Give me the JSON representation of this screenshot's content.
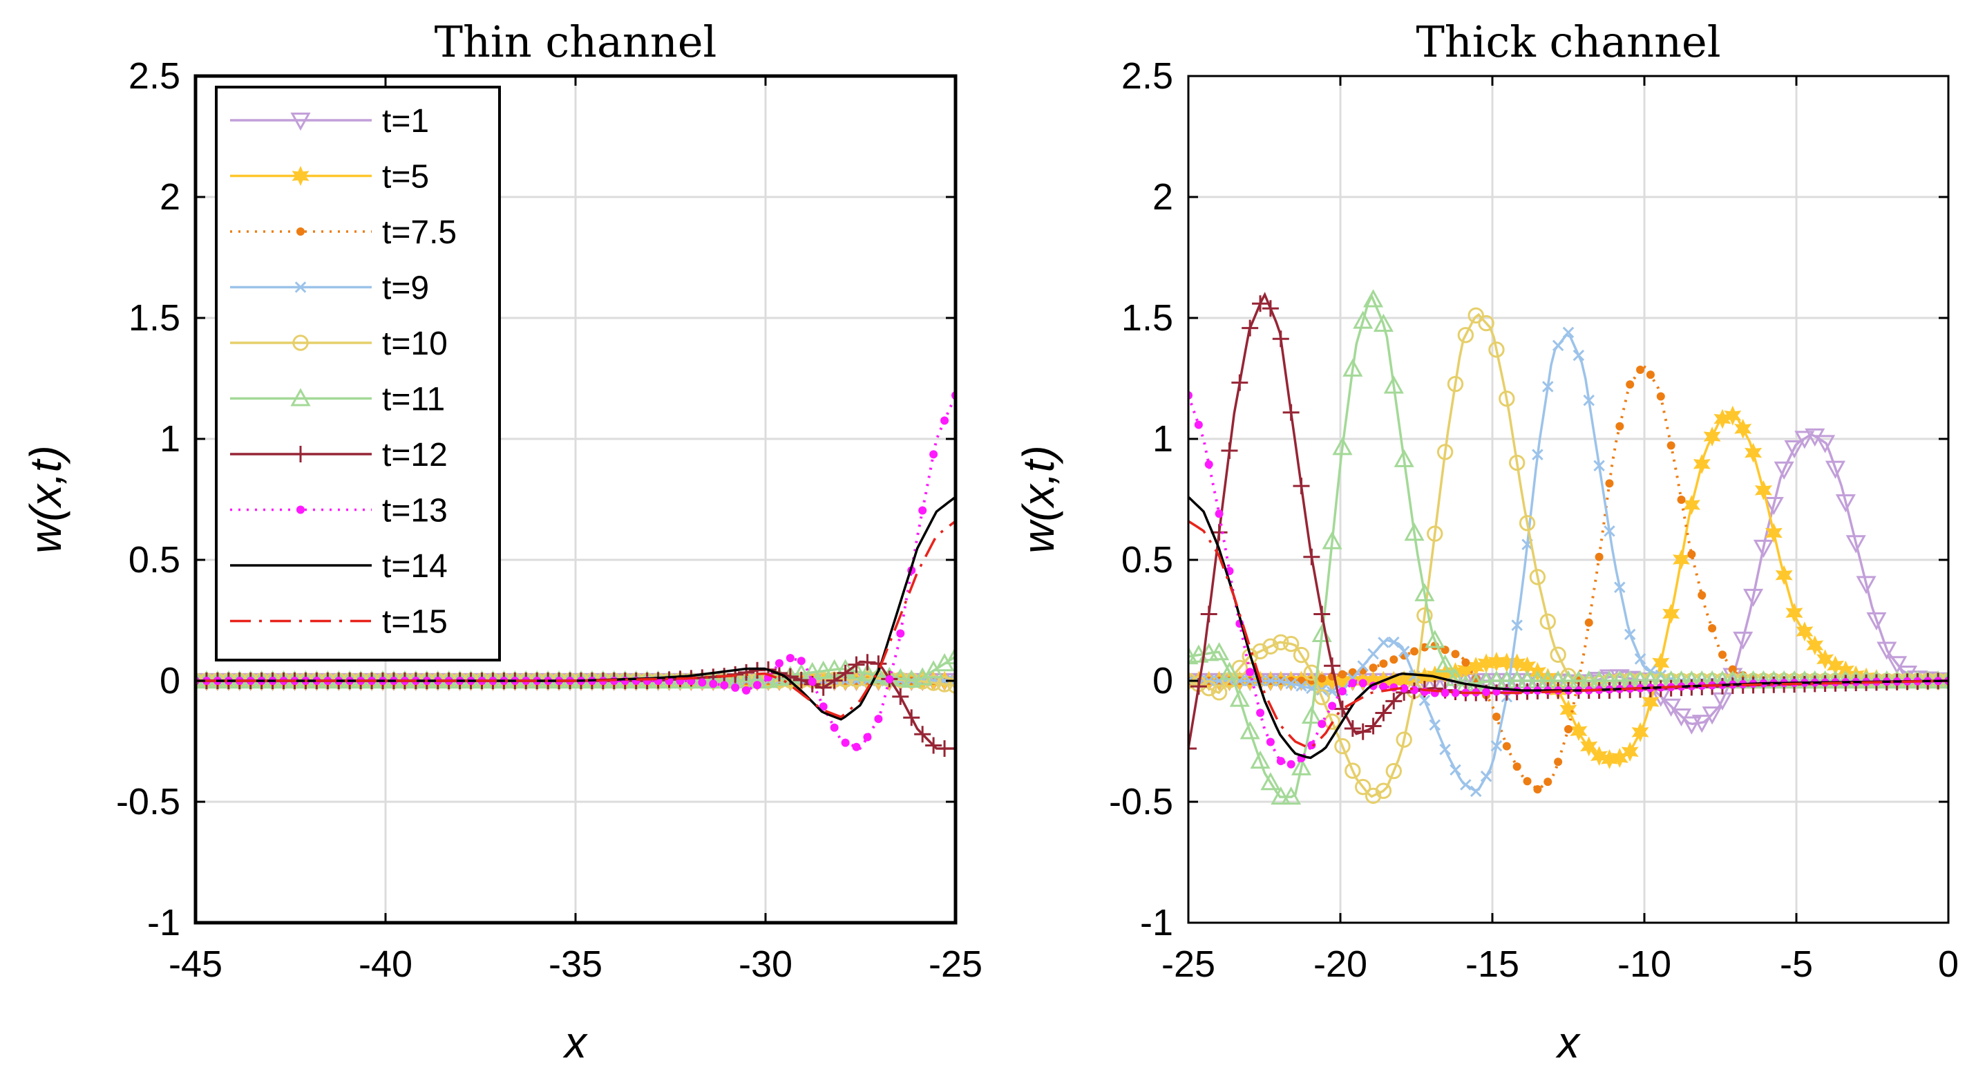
{
  "chart_data": [
    {
      "type": "line",
      "title": "Thin channel",
      "xlabel": "x",
      "ylabel": "w(x,t)",
      "xlim": [
        -45,
        -25
      ],
      "ylim": [
        -1,
        2.5
      ],
      "xticks": [
        -45,
        -40,
        -35,
        -30,
        -25
      ],
      "yticks": [
        -1,
        -0.5,
        0,
        0.5,
        1,
        1.5,
        2,
        2.5
      ],
      "xtick_labels": [
        "-45",
        "-40",
        "-35",
        "-30",
        "-25"
      ],
      "ytick_labels": [
        "-1",
        "-0.5",
        "0",
        "0.5",
        "1",
        "1.5",
        "2",
        "2.5"
      ],
      "grid": true,
      "legend": "top-left",
      "series": [
        {
          "name": "t=1",
          "color": "#c29fd9",
          "marker": "triangle-down",
          "dash": "solid",
          "x": [
            -45,
            -35,
            -30,
            -25
          ],
          "y": [
            0,
            0,
            0,
            0
          ]
        },
        {
          "name": "t=5",
          "color": "#ffc72c",
          "marker": "star",
          "dash": "solid",
          "x": [
            -45,
            -35,
            -30,
            -25
          ],
          "y": [
            0,
            0,
            0,
            0
          ]
        },
        {
          "name": "t=7.5",
          "color": "#ed7d12",
          "marker": "dot",
          "dash": "dotted",
          "x": [
            -45,
            -35,
            -30,
            -25
          ],
          "y": [
            0,
            0,
            0,
            0
          ]
        },
        {
          "name": "t=9",
          "color": "#9cc3ea",
          "marker": "x",
          "dash": "solid",
          "x": [
            -45,
            -35,
            -30,
            -25
          ],
          "y": [
            0,
            0,
            0,
            0
          ]
        },
        {
          "name": "t=10",
          "color": "#e6cf6a",
          "marker": "circle",
          "dash": "solid",
          "x": [
            -45,
            -30,
            -28,
            -27,
            -26,
            -25
          ],
          "y": [
            0,
            0,
            0.005,
            0.01,
            0.0,
            -0.02
          ]
        },
        {
          "name": "t=11",
          "color": "#a3d997",
          "marker": "triangle-up",
          "dash": "solid",
          "x": [
            -45,
            -30,
            -29,
            -28,
            -27,
            -26,
            -25.5,
            -25
          ],
          "y": [
            0,
            0,
            0.03,
            0.05,
            0.02,
            0.0,
            0.05,
            0.1
          ]
        },
        {
          "name": "t=12",
          "color": "#962535",
          "marker": "plus",
          "dash": "solid",
          "x": [
            -45,
            -33,
            -31,
            -30,
            -29,
            -28.5,
            -28,
            -27.5,
            -27,
            -26.5,
            -26,
            -25.5,
            -25
          ],
          "y": [
            0,
            0,
            0.02,
            0.05,
            0.0,
            -0.03,
            0.02,
            0.08,
            0.07,
            -0.05,
            -0.2,
            -0.28,
            -0.28
          ]
        },
        {
          "name": "t=13",
          "color": "#ff19ff",
          "marker": "dot",
          "dash": "dotted",
          "x": [
            -45,
            -32,
            -31,
            -30.5,
            -30,
            -29.5,
            -29,
            -28.5,
            -28,
            -27.5,
            -27,
            -26.5,
            -26,
            -25.5,
            -25
          ],
          "y": [
            0,
            0,
            -0.02,
            -0.04,
            0.0,
            0.1,
            0.08,
            -0.1,
            -0.25,
            -0.28,
            -0.15,
            0.15,
            0.6,
            1.0,
            1.18
          ]
        },
        {
          "name": "t=14",
          "color": "#000000",
          "marker": "none",
          "dash": "solid",
          "x": [
            -45,
            -35,
            -33,
            -32,
            -31,
            -30.5,
            -30,
            -29.5,
            -29,
            -28.5,
            -28,
            -27.5,
            -27,
            -26.5,
            -26,
            -25.5,
            -25
          ],
          "y": [
            0,
            0,
            0.01,
            0.02,
            0.04,
            0.05,
            0.05,
            0.02,
            -0.05,
            -0.13,
            -0.16,
            -0.1,
            0.05,
            0.3,
            0.55,
            0.7,
            0.76
          ]
        },
        {
          "name": "t=15",
          "color": "#e8231b",
          "marker": "none",
          "dash": "dashdot",
          "x": [
            -45,
            -35,
            -32,
            -31,
            -30,
            -29.5,
            -29,
            -28.5,
            -28,
            -27.5,
            -27,
            -26.5,
            -26,
            -25.5,
            -25
          ],
          "y": [
            0,
            0,
            0.01,
            0.02,
            0.03,
            0.0,
            -0.06,
            -0.12,
            -0.15,
            -0.08,
            0.05,
            0.25,
            0.45,
            0.6,
            0.66
          ]
        }
      ]
    },
    {
      "type": "line",
      "title": "Thick channel",
      "xlabel": "x",
      "ylabel": "w(x,t)",
      "xlim": [
        -25,
        0
      ],
      "ylim": [
        -1,
        2.5
      ],
      "xticks": [
        -25,
        -20,
        -15,
        -10,
        -5,
        0
      ],
      "yticks": [
        -1,
        -0.5,
        0,
        0.5,
        1,
        1.5,
        2,
        2.5
      ],
      "xtick_labels": [
        "-25",
        "-20",
        "-15",
        "-10",
        "-5",
        "0"
      ],
      "ytick_labels": [
        "-1",
        "-0.5",
        "0",
        "0.5",
        "1",
        "1.5",
        "2",
        "2.5"
      ],
      "grid": true,
      "series": [
        {
          "name": "t=1",
          "color": "#c29fd9",
          "marker": "triangle-down",
          "dash": "solid",
          "x": [
            -25,
            -13,
            -12,
            -11,
            -10,
            -9,
            -8.5,
            -8,
            -7.5,
            -7,
            -6.5,
            -6,
            -5.5,
            -5,
            -4.5,
            -4,
            -3.5,
            -3,
            -2.5,
            -2,
            -1.5,
            -1,
            0
          ],
          "y": [
            0,
            0,
            -0.01,
            0.02,
            0.0,
            -0.12,
            -0.18,
            -0.17,
            -0.1,
            0.05,
            0.3,
            0.6,
            0.85,
            0.98,
            1.02,
            0.98,
            0.8,
            0.55,
            0.3,
            0.12,
            0.04,
            0.01,
            0
          ]
        },
        {
          "name": "t=5",
          "color": "#ffc72c",
          "marker": "star",
          "dash": "solid",
          "x": [
            -25,
            -18,
            -16,
            -15,
            -14,
            -13,
            -12.5,
            -12,
            -11.5,
            -11,
            -10.5,
            -10,
            -9.5,
            -9,
            -8.5,
            -8,
            -7.5,
            -7,
            -6.5,
            -6,
            -5.5,
            -5,
            -4,
            -3,
            -2,
            0
          ],
          "y": [
            0,
            0,
            0.04,
            0.08,
            0.07,
            0.0,
            -0.12,
            -0.25,
            -0.31,
            -0.33,
            -0.3,
            -0.18,
            0.05,
            0.35,
            0.7,
            0.95,
            1.08,
            1.1,
            0.98,
            0.75,
            0.48,
            0.25,
            0.08,
            0.02,
            0,
            0
          ]
        },
        {
          "name": "t=7.5",
          "color": "#ed7d12",
          "marker": "dot",
          "dash": "dotted",
          "x": [
            -25,
            -21,
            -19,
            -18,
            -17,
            -16,
            -15,
            -14.5,
            -14,
            -13.5,
            -13,
            -12.5,
            -12,
            -11.5,
            -11,
            -10.5,
            -10,
            -9.5,
            -9,
            -8.5,
            -8,
            -7.5,
            -7,
            -6,
            -5,
            0
          ],
          "y": [
            0,
            0,
            0.05,
            0.1,
            0.15,
            0.1,
            -0.1,
            -0.28,
            -0.4,
            -0.45,
            -0.4,
            -0.2,
            0.1,
            0.5,
            0.95,
            1.22,
            1.31,
            1.2,
            0.9,
            0.55,
            0.3,
            0.12,
            0.03,
            0,
            0,
            0
          ]
        },
        {
          "name": "t=9",
          "color": "#9cc3ea",
          "marker": "x",
          "dash": "solid",
          "x": [
            -25,
            -22,
            -21,
            -20,
            -19,
            -18.5,
            -18,
            -17,
            -16.5,
            -16,
            -15.5,
            -15,
            -14.5,
            -14,
            -13.5,
            -13,
            -12.5,
            -12,
            -11.5,
            -11,
            -10.5,
            -10,
            -9,
            -8,
            0
          ],
          "y": [
            0,
            0.0,
            -0.03,
            -0.05,
            0.1,
            0.17,
            0.15,
            -0.15,
            -0.3,
            -0.42,
            -0.46,
            -0.35,
            -0.05,
            0.4,
            0.95,
            1.36,
            1.44,
            1.3,
            0.9,
            0.5,
            0.2,
            0.05,
            0,
            0,
            0
          ]
        },
        {
          "name": "t=10",
          "color": "#e6cf6a",
          "marker": "circle",
          "dash": "solid",
          "x": [
            -25,
            -24.5,
            -24,
            -23,
            -22,
            -21.5,
            -21,
            -20.5,
            -20,
            -19.5,
            -19,
            -18.5,
            -18,
            -17.5,
            -17,
            -16.5,
            -16,
            -15.5,
            -15,
            -14.5,
            -14,
            -13.5,
            -13,
            -12.5,
            -12,
            -11,
            -10,
            0
          ],
          "y": [
            0,
            -0.02,
            -0.05,
            0.1,
            0.16,
            0.15,
            0.05,
            -0.1,
            -0.25,
            -0.4,
            -0.48,
            -0.45,
            -0.3,
            0.0,
            0.5,
            1.0,
            1.4,
            1.52,
            1.45,
            1.15,
            0.75,
            0.42,
            0.15,
            0.02,
            -0.02,
            0.0,
            0.0,
            0
          ]
        },
        {
          "name": "t=11",
          "color": "#a3d997",
          "marker": "triangle-up",
          "dash": "solid",
          "x": [
            -25,
            -24,
            -23.5,
            -23,
            -22.5,
            -22,
            -21.5,
            -21,
            -20.5,
            -20,
            -19.5,
            -19,
            -18.5,
            -18,
            -17.5,
            -17,
            -16.5,
            -16,
            -15,
            -14,
            0
          ],
          "y": [
            0.1,
            0.12,
            0.0,
            -0.2,
            -0.38,
            -0.48,
            -0.48,
            -0.2,
            0.3,
            0.9,
            1.38,
            1.6,
            1.45,
            1.0,
            0.55,
            0.2,
            0.05,
            -0.02,
            0,
            0,
            0
          ]
        },
        {
          "name": "t=12",
          "color": "#962535",
          "marker": "plus",
          "dash": "solid",
          "x": [
            -25,
            -24.5,
            -24,
            -23.5,
            -23,
            -22.5,
            -22,
            -21.5,
            -21,
            -20.5,
            -20,
            -19.5,
            -19,
            -18.5,
            -18,
            -17,
            -16,
            -15,
            -13,
            -11,
            -9,
            -7,
            0
          ],
          "y": [
            -0.28,
            0.1,
            0.6,
            1.1,
            1.45,
            1.6,
            1.45,
            1.0,
            0.55,
            0.2,
            -0.1,
            -0.22,
            -0.2,
            -0.12,
            -0.05,
            -0.03,
            -0.05,
            -0.05,
            -0.04,
            -0.04,
            -0.03,
            -0.02,
            0
          ]
        },
        {
          "name": "t=13",
          "color": "#ff19ff",
          "marker": "dot",
          "dash": "dotted",
          "x": [
            -25,
            -24.5,
            -24,
            -23.5,
            -23,
            -22.5,
            -22,
            -21.5,
            -21,
            -20.5,
            -20,
            -19.5,
            -19,
            -18,
            -17,
            -16,
            -14,
            -12,
            -10,
            -8,
            -6,
            0
          ],
          "y": [
            1.18,
            1.0,
            0.7,
            0.35,
            0.05,
            -0.2,
            -0.33,
            -0.35,
            -0.28,
            -0.15,
            -0.05,
            0.0,
            -0.02,
            -0.03,
            -0.05,
            -0.05,
            -0.04,
            -0.04,
            -0.03,
            -0.02,
            -0.01,
            0
          ]
        },
        {
          "name": "t=14",
          "color": "#000000",
          "marker": "none",
          "dash": "solid",
          "x": [
            -25,
            -24.5,
            -24,
            -23.5,
            -23,
            -22.5,
            -22,
            -21.5,
            -21,
            -20.5,
            -20,
            -19.5,
            -19,
            -18,
            -17,
            -16,
            -15,
            -14,
            -12,
            -10,
            -8,
            -6,
            0
          ],
          "y": [
            0.76,
            0.7,
            0.55,
            0.35,
            0.12,
            -0.08,
            -0.22,
            -0.3,
            -0.32,
            -0.28,
            -0.18,
            -0.08,
            -0.02,
            0.03,
            0.02,
            -0.01,
            -0.03,
            -0.04,
            -0.04,
            -0.03,
            -0.02,
            -0.01,
            0
          ]
        },
        {
          "name": "t=15",
          "color": "#e8231b",
          "marker": "none",
          "dash": "dashdot",
          "x": [
            -25,
            -24.5,
            -24,
            -23.5,
            -23,
            -22.5,
            -22,
            -21.5,
            -21,
            -20.5,
            -20,
            -19,
            -18,
            -17,
            -16,
            -14,
            -12,
            -10,
            -8,
            0
          ],
          "y": [
            0.66,
            0.62,
            0.52,
            0.35,
            0.15,
            -0.05,
            -0.18,
            -0.25,
            -0.28,
            -0.22,
            -0.12,
            -0.05,
            -0.03,
            -0.04,
            -0.05,
            -0.05,
            -0.04,
            -0.03,
            -0.02,
            0
          ]
        }
      ]
    }
  ]
}
